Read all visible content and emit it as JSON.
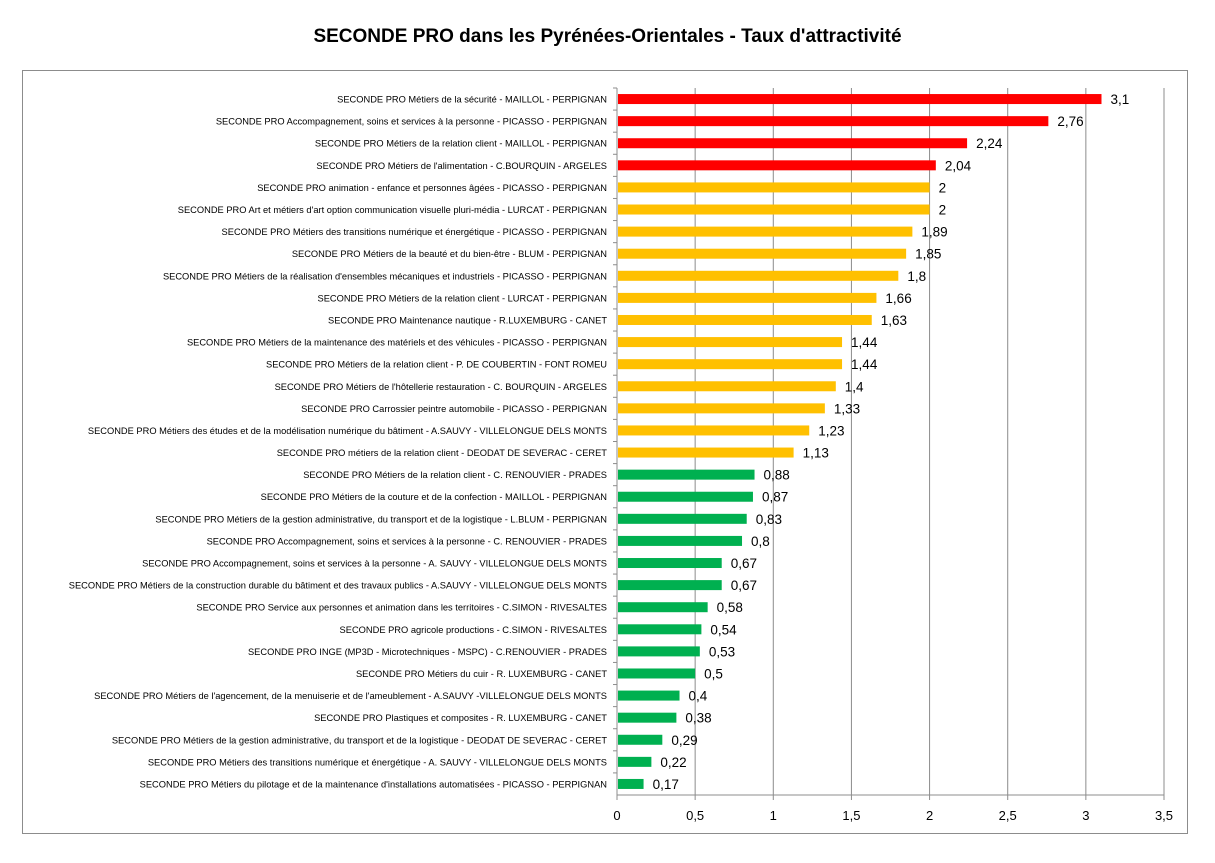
{
  "chart_data": {
    "type": "bar",
    "orientation": "horizontal",
    "title": "SECONDE PRO dans les Pyrénées-Orientales - Taux d'attractivité",
    "xlabel": "",
    "ylabel": "",
    "xlim": [
      0,
      3.5
    ],
    "x_ticks": [
      "0",
      "0,5",
      "1",
      "1,5",
      "2",
      "2,5",
      "3",
      "3,5"
    ],
    "grid": "vertical",
    "legend": "none",
    "colors": {
      "red": "#ff0000",
      "orange": "#ffc000",
      "green": "#00b050",
      "grid": "#8c8c8c"
    },
    "categories": [
      "SECONDE PRO Métiers de la sécurité - MAILLOL - PERPIGNAN",
      "SECONDE PRO Accompagnement, soins et services à la personne - PICASSO - PERPIGNAN",
      "SECONDE PRO Métiers de la relation client - MAILLOL - PERPIGNAN",
      "SECONDE PRO Métiers de l'alimentation - C.BOURQUIN - ARGELES",
      "SECONDE PRO animation - enfance et personnes âgées - PICASSO - PERPIGNAN",
      "SECONDE PRO Art et métiers d'art option communication visuelle pluri-média - LURCAT - PERPIGNAN",
      "SECONDE PRO Métiers des transitions numérique et énergétique - PICASSO - PERPIGNAN",
      "SECONDE PRO Métiers de la beauté et du bien-être - BLUM - PERPIGNAN",
      "SECONDE PRO Métiers de la réalisation d'ensembles mécaniques et industriels - PICASSO - PERPIGNAN",
      "SECONDE PRO Métiers de la relation client - LURCAT - PERPIGNAN",
      "SECONDE PRO Maintenance nautique - R.LUXEMBURG - CANET",
      "SECONDE PRO Métiers de la maintenance des matériels et des véhicules - PICASSO - PERPIGNAN",
      "SECONDE PRO Métiers de la relation client - P. DE COUBERTIN - FONT ROMEU",
      "SECONDE PRO Métiers de l'hôtellerie restauration - C. BOURQUIN - ARGELES",
      "SECONDE PRO Carrossier peintre automobile - PICASSO - PERPIGNAN",
      "SECONDE PRO Métiers des études et de la modélisation numérique du bâtiment - A.SAUVY - VILLELONGUE DELS MONTS",
      "SECONDE PRO métiers de la relation client - DEODAT DE SEVERAC - CERET",
      "SECONDE PRO Métiers de la relation client - C. RENOUVIER - PRADES",
      "SECONDE PRO Métiers de la couture et de la confection - MAILLOL - PERPIGNAN",
      "SECONDE PRO Métiers de la gestion administrative, du transport et de la logistique - L.BLUM - PERPIGNAN",
      "SECONDE PRO Accompagnement, soins et services à la personne - C. RENOUVIER - PRADES",
      "SECONDE PRO Accompagnement, soins et services à la personne - A. SAUVY - VILLELONGUE DELS MONTS",
      "SECONDE PRO Métiers de la construction durable du bâtiment et des travaux publics - A.SAUVY - VILLELONGUE DELS MONTS",
      "SECONDE PRO Service aux personnes et animation dans les territoires - C.SIMON - RIVESALTES",
      "SECONDE PRO agricole productions - C.SIMON - RIVESALTES",
      "SECONDE PRO INGE (MP3D - Microtechniques - MSPC) - C.RENOUVIER - PRADES",
      "SECONDE PRO Métiers du cuir - R. LUXEMBURG - CANET",
      "SECONDE PRO Métiers de l'agencement, de la menuiserie et de l'ameublement - A.SAUVY -VILLELONGUE DELS MONTS",
      "SECONDE PRO Plastiques et composites - R. LUXEMBURG - CANET",
      "SECONDE PRO Métiers de la gestion administrative, du transport et de la logistique - DEODAT DE SEVERAC - CERET",
      "SECONDE PRO Métiers des transitions numérique et énergétique - A. SAUVY - VILLELONGUE DELS MONTS",
      "SECONDE PRO Métiers du pilotage et de la maintenance d'installations automatisées - PICASSO - PERPIGNAN"
    ],
    "values": [
      3.1,
      2.76,
      2.24,
      2.04,
      2,
      2,
      1.89,
      1.85,
      1.8,
      1.66,
      1.63,
      1.44,
      1.44,
      1.4,
      1.33,
      1.23,
      1.13,
      0.88,
      0.87,
      0.83,
      0.8,
      0.67,
      0.67,
      0.58,
      0.54,
      0.53,
      0.5,
      0.4,
      0.38,
      0.29,
      0.22,
      0.17
    ],
    "value_labels": [
      "3,1",
      "2,76",
      "2,24",
      "2,04",
      "2",
      "2",
      "1,89",
      "1,85",
      "1,8",
      "1,66",
      "1,63",
      "1,44",
      "1,44",
      "1,4",
      "1,33",
      "1,23",
      "1,13",
      "0,88",
      "0,87",
      "0,83",
      "0,8",
      "0,67",
      "0,67",
      "0,58",
      "0,54",
      "0,53",
      "0,5",
      "0,4",
      "0,38",
      "0,29",
      "0,22",
      "0,17"
    ],
    "bar_colors": [
      "red",
      "red",
      "red",
      "red",
      "orange",
      "orange",
      "orange",
      "orange",
      "orange",
      "orange",
      "orange",
      "orange",
      "orange",
      "orange",
      "orange",
      "orange",
      "orange",
      "green",
      "green",
      "green",
      "green",
      "green",
      "green",
      "green",
      "green",
      "green",
      "green",
      "green",
      "green",
      "green",
      "green",
      "green"
    ]
  }
}
